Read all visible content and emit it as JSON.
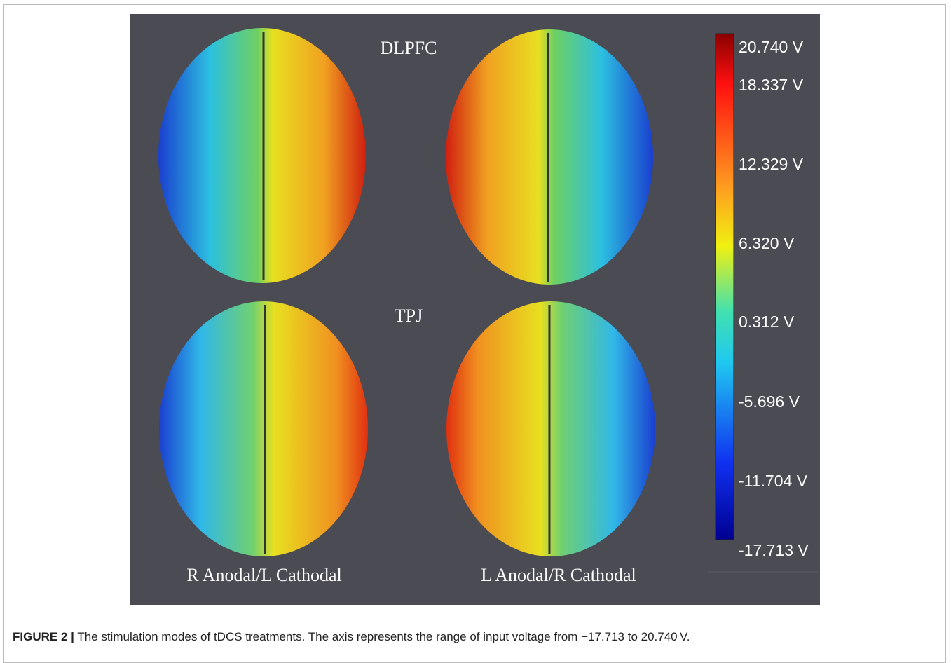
{
  "figure": {
    "row_labels": [
      "DLPFC",
      "TPJ"
    ],
    "column_labels": [
      "R Anodal/L Cathodal",
      "L Anodal/R Cathodal"
    ],
    "colorbar_labels": [
      "20.740 V",
      "18.337 V",
      "12.329 V",
      "6.320 V",
      "0.312 V",
      "-5.696 V",
      "-11.704 V",
      "-17.713 V"
    ]
  },
  "caption": {
    "label": "FIGURE 2 |",
    "text": "The stimulation modes of tDCS treatments. The axis represents the range of input voltage from −17.713 to 20.740 V."
  }
}
